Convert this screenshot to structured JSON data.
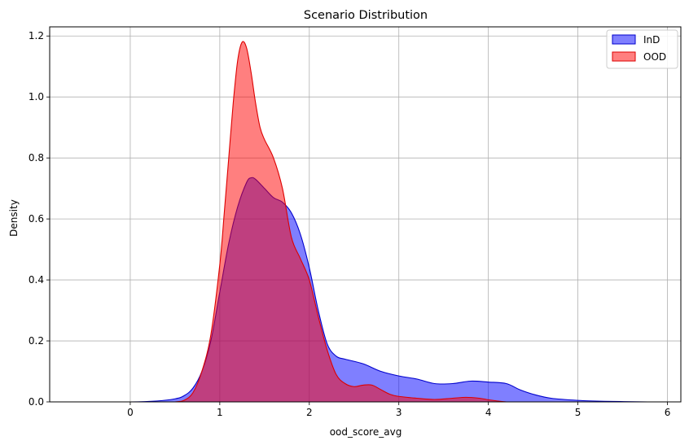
{
  "chart_data": {
    "type": "area",
    "title": "Scenario Distribution",
    "xlabel": "ood_score_avg",
    "ylabel": "Density",
    "xlim": [
      -0.9,
      6.15
    ],
    "ylim": [
      0,
      1.23
    ],
    "xticks": [
      0,
      1,
      2,
      3,
      4,
      5,
      6
    ],
    "yticks": [
      0.0,
      0.2,
      0.4,
      0.6,
      0.8,
      1.0,
      1.2
    ],
    "grid": true,
    "legend_position": "top-right",
    "series": [
      {
        "name": "InD",
        "fill": "#0000ff",
        "stroke": "#0000cc",
        "points": [
          [
            -0.65,
            0.0
          ],
          [
            0.0,
            0.0
          ],
          [
            0.3,
            0.003
          ],
          [
            0.5,
            0.01
          ],
          [
            0.6,
            0.02
          ],
          [
            0.7,
            0.045
          ],
          [
            0.8,
            0.1
          ],
          [
            0.9,
            0.2
          ],
          [
            1.0,
            0.36
          ],
          [
            1.1,
            0.52
          ],
          [
            1.2,
            0.64
          ],
          [
            1.3,
            0.72
          ],
          [
            1.35,
            0.735
          ],
          [
            1.4,
            0.73
          ],
          [
            1.5,
            0.7
          ],
          [
            1.6,
            0.67
          ],
          [
            1.7,
            0.655
          ],
          [
            1.8,
            0.62
          ],
          [
            1.9,
            0.55
          ],
          [
            2.0,
            0.44
          ],
          [
            2.1,
            0.3
          ],
          [
            2.2,
            0.19
          ],
          [
            2.3,
            0.15
          ],
          [
            2.4,
            0.14
          ],
          [
            2.6,
            0.125
          ],
          [
            2.8,
            0.1
          ],
          [
            3.0,
            0.085
          ],
          [
            3.2,
            0.075
          ],
          [
            3.4,
            0.06
          ],
          [
            3.6,
            0.06
          ],
          [
            3.8,
            0.068
          ],
          [
            4.0,
            0.065
          ],
          [
            4.2,
            0.06
          ],
          [
            4.35,
            0.04
          ],
          [
            4.5,
            0.025
          ],
          [
            4.7,
            0.012
          ],
          [
            5.0,
            0.005
          ],
          [
            5.3,
            0.002
          ],
          [
            5.78,
            0.0
          ]
        ]
      },
      {
        "name": "OOD",
        "fill": "#ff0000",
        "stroke": "#dd0000",
        "points": [
          [
            0.5,
            0.0
          ],
          [
            0.6,
            0.005
          ],
          [
            0.7,
            0.03
          ],
          [
            0.8,
            0.1
          ],
          [
            0.9,
            0.22
          ],
          [
            1.0,
            0.45
          ],
          [
            1.05,
            0.62
          ],
          [
            1.1,
            0.8
          ],
          [
            1.15,
            0.98
          ],
          [
            1.2,
            1.12
          ],
          [
            1.25,
            1.18
          ],
          [
            1.3,
            1.16
          ],
          [
            1.35,
            1.08
          ],
          [
            1.4,
            0.98
          ],
          [
            1.45,
            0.9
          ],
          [
            1.5,
            0.86
          ],
          [
            1.6,
            0.8
          ],
          [
            1.7,
            0.7
          ],
          [
            1.8,
            0.54
          ],
          [
            1.9,
            0.47
          ],
          [
            2.0,
            0.4
          ],
          [
            2.1,
            0.28
          ],
          [
            2.2,
            0.17
          ],
          [
            2.3,
            0.09
          ],
          [
            2.4,
            0.06
          ],
          [
            2.5,
            0.05
          ],
          [
            2.6,
            0.055
          ],
          [
            2.7,
            0.055
          ],
          [
            2.8,
            0.04
          ],
          [
            2.9,
            0.025
          ],
          [
            3.0,
            0.018
          ],
          [
            3.2,
            0.012
          ],
          [
            3.4,
            0.008
          ],
          [
            3.6,
            0.012
          ],
          [
            3.75,
            0.015
          ],
          [
            3.9,
            0.012
          ],
          [
            4.0,
            0.007
          ],
          [
            4.1,
            0.003
          ],
          [
            4.2,
            0.0
          ]
        ]
      }
    ]
  }
}
